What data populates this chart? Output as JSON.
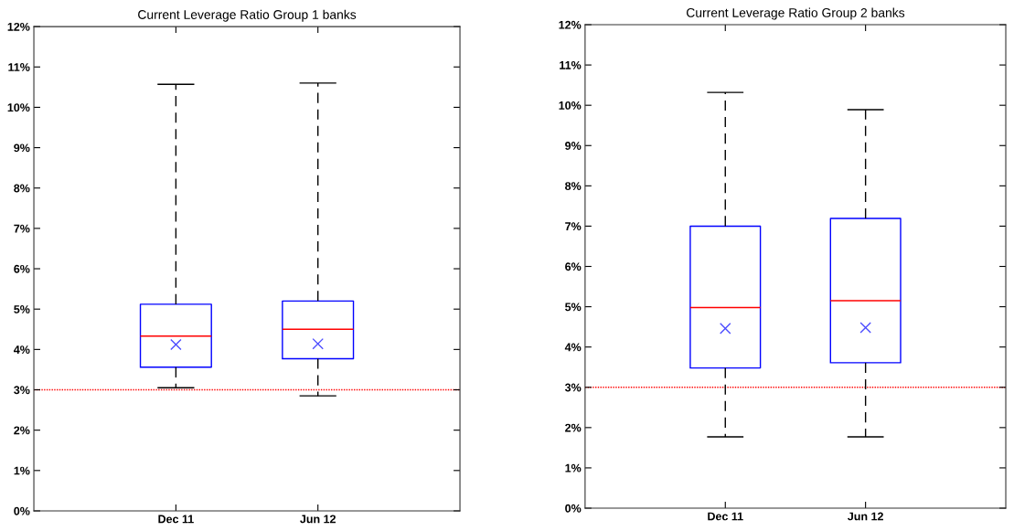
{
  "chart_data": [
    {
      "type": "box",
      "title": "Current Leverage Ratio Group 1 banks",
      "categories": [
        "Dec 11",
        "Jun 12"
      ],
      "color": "#0000ff",
      "marker": "cross",
      "boxes": [
        {
          "low": 3.05,
          "q1": 3.56,
          "median": 4.33,
          "q3": 5.12,
          "high": 10.57,
          "mean": 4.12
        },
        {
          "low": 2.85,
          "q1": 3.77,
          "median": 4.5,
          "q3": 5.2,
          "high": 10.6,
          "mean": 4.14
        }
      ],
      "ylim": [
        0,
        12
      ],
      "yticks": [
        {
          "value": 0,
          "label": "0%"
        },
        {
          "value": 1,
          "label": "1%"
        },
        {
          "value": 2,
          "label": "2%"
        },
        {
          "value": 3,
          "label": "3%"
        },
        {
          "value": 4,
          "label": "4%"
        },
        {
          "value": 5,
          "label": "5%"
        },
        {
          "value": 6,
          "label": "6%"
        },
        {
          "value": 7,
          "label": "7%"
        },
        {
          "value": 8,
          "label": "8%"
        },
        {
          "value": 9,
          "label": "9%"
        },
        {
          "value": 10,
          "label": "10%"
        },
        {
          "value": 11,
          "label": "11%"
        },
        {
          "value": 12,
          "label": "12%"
        }
      ],
      "ref_lines": [
        {
          "axis": "y",
          "value": 3,
          "color": "#ff0000",
          "line_style": "dotted"
        }
      ]
    },
    {
      "type": "box",
      "title": "Current Leverage Ratio Group 2 banks",
      "categories": [
        "Dec 11",
        "Jun 12"
      ],
      "color": "#0000ff",
      "marker": "cross",
      "boxes": [
        {
          "low": 1.77,
          "q1": 3.48,
          "median": 4.98,
          "q3": 7.0,
          "high": 10.32,
          "mean": 4.46
        },
        {
          "low": 1.77,
          "q1": 3.61,
          "median": 5.15,
          "q3": 7.19,
          "high": 9.89,
          "mean": 4.48
        }
      ],
      "ylim": [
        0,
        12
      ],
      "yticks": [
        {
          "value": 0,
          "label": "0%"
        },
        {
          "value": 1,
          "label": "1%"
        },
        {
          "value": 2,
          "label": "2%"
        },
        {
          "value": 3,
          "label": "3%"
        },
        {
          "value": 4,
          "label": "4%"
        },
        {
          "value": 5,
          "label": "5%"
        },
        {
          "value": 6,
          "label": "6%"
        },
        {
          "value": 7,
          "label": "7%"
        },
        {
          "value": 8,
          "label": "8%"
        },
        {
          "value": 9,
          "label": "9%"
        },
        {
          "value": 10,
          "label": "10%"
        },
        {
          "value": 11,
          "label": "11%"
        },
        {
          "value": 12,
          "label": "12%"
        }
      ],
      "ref_lines": [
        {
          "axis": "y",
          "value": 3,
          "color": "#ff0000",
          "line_style": "dotted"
        }
      ]
    }
  ]
}
